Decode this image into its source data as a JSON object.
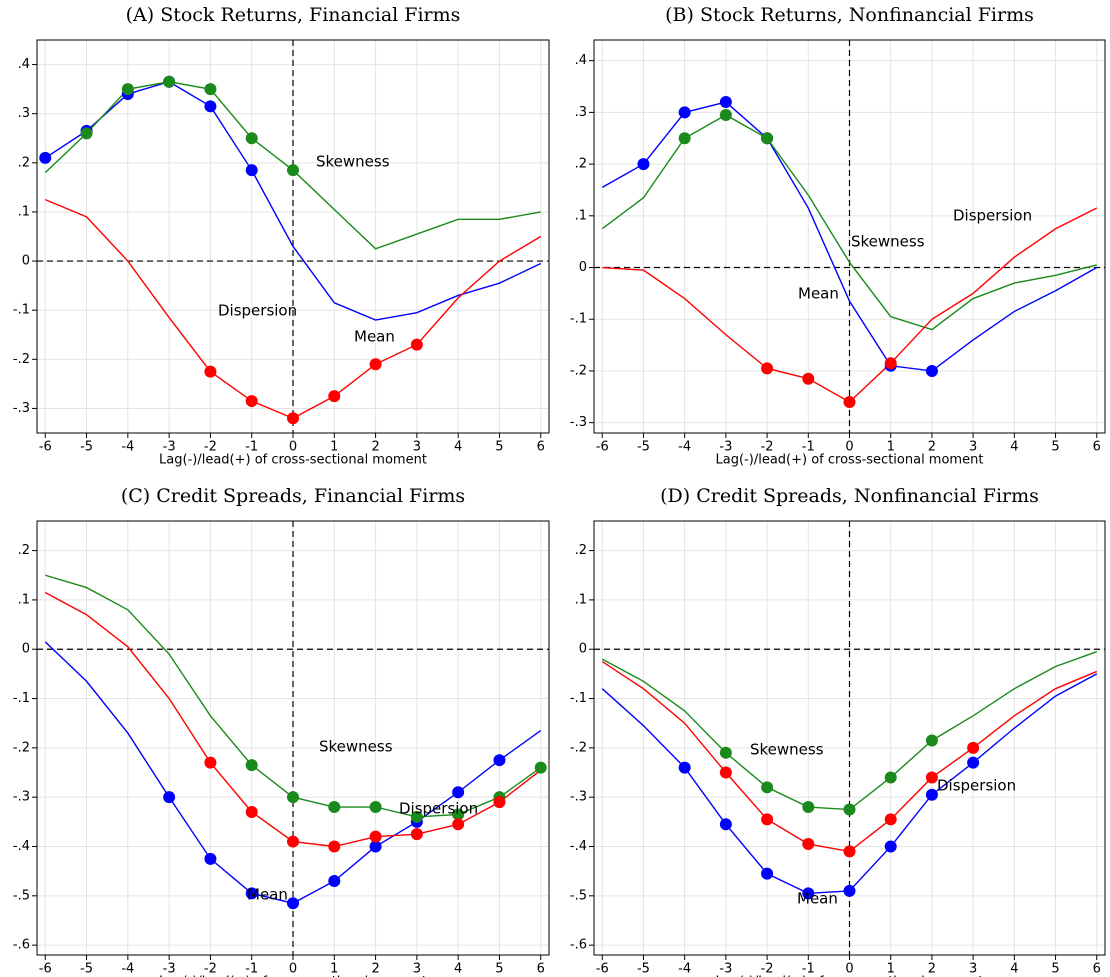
{
  "chart_data": [
    {
      "type": "line",
      "title": "(A) Stock Returns, Financial Firms",
      "x_label": "Lag(-)/lead(+) of cross-sectional moment",
      "x": [
        -6,
        -5,
        -4,
        -3,
        -2,
        -1,
        0,
        1,
        2,
        3,
        4,
        5,
        6
      ],
      "xlim": [
        -6.2,
        6.2
      ],
      "xticks": [
        -6,
        -5,
        -4,
        -3,
        -2,
        -1,
        0,
        1,
        2,
        3,
        4,
        5,
        6
      ],
      "ylim": [
        -0.35,
        0.45
      ],
      "yticks": [
        {
          "value": -0.3,
          "label": "-.3"
        },
        {
          "value": -0.2,
          "label": "-.2"
        },
        {
          "value": -0.1,
          "label": "-.1"
        },
        0,
        {
          "value": 0.1,
          "label": ".1"
        },
        {
          "value": 0.2,
          "label": ".2"
        },
        {
          "value": 0.3,
          "label": ".3"
        },
        {
          "value": 0.4,
          "label": ".4"
        }
      ],
      "grid": true,
      "hline": 0,
      "vline": 0,
      "series": [
        {
          "name": "Mean",
          "color": "#0000ff",
          "values": [
            0.21,
            0.265,
            0.34,
            0.365,
            0.315,
            0.185,
            0.03,
            -0.085,
            -0.12,
            -0.105,
            -0.07,
            -0.045,
            -0.005
          ],
          "markers": [
            true,
            true,
            true,
            true,
            true,
            true,
            false,
            false,
            false,
            false,
            false,
            false,
            false
          ]
        },
        {
          "name": "Skewness",
          "color": "#1a8a1a",
          "values": [
            0.18,
            0.26,
            0.35,
            0.365,
            0.35,
            0.25,
            0.185,
            0.105,
            0.025,
            0.055,
            0.085,
            0.085,
            0.1
          ],
          "markers": [
            false,
            true,
            true,
            true,
            true,
            true,
            true,
            false,
            false,
            false,
            false,
            false,
            false
          ]
        },
        {
          "name": "Dispersion",
          "color": "#ff0000",
          "values": [
            0.125,
            0.09,
            0,
            -0.115,
            -0.225,
            -0.285,
            -0.32,
            -0.275,
            -0.21,
            -0.17,
            -0.075,
            0,
            0.05
          ],
          "markers": [
            false,
            false,
            false,
            false,
            true,
            true,
            true,
            true,
            true,
            true,
            false,
            false,
            false
          ]
        }
      ]
    },
    {
      "type": "line",
      "title": "(B) Stock Returns, Nonfinancial Firms",
      "x_label": "Lag(-)/lead(+) of cross-sectional moment",
      "x": [
        -6,
        -5,
        -4,
        -3,
        -2,
        -1,
        0,
        1,
        2,
        3,
        4,
        5,
        6
      ],
      "xlim": [
        -6.2,
        6.2
      ],
      "xticks": [
        -6,
        -5,
        -4,
        -3,
        -2,
        -1,
        0,
        1,
        2,
        3,
        4,
        5,
        6
      ],
      "ylim": [
        -0.32,
        0.44
      ],
      "yticks": [
        {
          "value": -0.3,
          "label": "-.3"
        },
        {
          "value": -0.2,
          "label": "-.2"
        },
        {
          "value": -0.1,
          "label": "-.1"
        },
        0,
        {
          "value": 0.1,
          "label": ".1"
        },
        {
          "value": 0.2,
          "label": ".2"
        },
        {
          "value": 0.3,
          "label": ".3"
        },
        {
          "value": 0.4,
          "label": ".4"
        }
      ],
      "grid": true,
      "hline": 0,
      "vline": 0,
      "series": [
        {
          "name": "Mean",
          "color": "#0000ff",
          "values": [
            0.155,
            0.2,
            0.3,
            0.32,
            0.25,
            0.115,
            -0.065,
            -0.19,
            -0.2,
            -0.14,
            -0.085,
            -0.045,
            0
          ],
          "markers": [
            false,
            true,
            true,
            true,
            true,
            false,
            false,
            true,
            true,
            false,
            false,
            false,
            false
          ]
        },
        {
          "name": "Skewness",
          "color": "#1a8a1a",
          "values": [
            0.075,
            0.135,
            0.25,
            0.295,
            0.25,
            0.14,
            0.01,
            -0.095,
            -0.12,
            -0.06,
            -0.03,
            -0.015,
            0.005
          ],
          "markers": [
            false,
            false,
            true,
            true,
            true,
            false,
            false,
            false,
            false,
            false,
            false,
            false,
            false
          ]
        },
        {
          "name": "Dispersion",
          "color": "#ff0000",
          "values": [
            0,
            -0.005,
            -0.06,
            -0.13,
            -0.195,
            -0.215,
            -0.26,
            -0.185,
            -0.1,
            -0.05,
            0.02,
            0.075,
            0.115
          ],
          "markers": [
            false,
            false,
            false,
            false,
            true,
            true,
            true,
            true,
            false,
            false,
            false,
            false,
            false
          ]
        }
      ]
    },
    {
      "type": "line",
      "title": "(C) Credit Spreads, Financial Firms",
      "x_label": "Lag(-)/lead(+) of cross-sectional moment",
      "x": [
        -6,
        -5,
        -4,
        -3,
        -2,
        -1,
        0,
        1,
        2,
        3,
        4,
        5,
        6
      ],
      "xlim": [
        -6.2,
        6.2
      ],
      "xticks": [
        -6,
        -5,
        -4,
        -3,
        -2,
        -1,
        0,
        1,
        2,
        3,
        4,
        5,
        6
      ],
      "ylim": [
        -0.62,
        0.26
      ],
      "yticks": [
        {
          "value": -0.6,
          "label": "-.6"
        },
        {
          "value": -0.5,
          "label": "-.5"
        },
        {
          "value": -0.4,
          "label": "-.4"
        },
        {
          "value": -0.3,
          "label": "-.3"
        },
        {
          "value": -0.2,
          "label": "-.2"
        },
        {
          "value": -0.1,
          "label": "-.1"
        },
        0,
        {
          "value": 0.1,
          "label": ".1"
        },
        {
          "value": 0.2,
          "label": ".2"
        }
      ],
      "grid": true,
      "hline": 0,
      "vline": 0,
      "series": [
        {
          "name": "Mean",
          "color": "#0000ff",
          "values": [
            0.015,
            -0.065,
            -0.17,
            -0.3,
            -0.425,
            -0.495,
            -0.515,
            -0.47,
            -0.4,
            -0.35,
            -0.29,
            -0.225,
            -0.165
          ],
          "markers": [
            false,
            false,
            false,
            true,
            true,
            true,
            true,
            true,
            true,
            true,
            true,
            true,
            false
          ]
        },
        {
          "name": "Skewness",
          "color": "#1a8a1a",
          "values": [
            0.15,
            0.125,
            0.08,
            -0.01,
            -0.135,
            -0.235,
            -0.3,
            -0.32,
            -0.32,
            -0.34,
            -0.335,
            -0.3,
            -0.24
          ],
          "markers": [
            false,
            false,
            false,
            false,
            false,
            true,
            true,
            true,
            true,
            true,
            true,
            true,
            true
          ]
        },
        {
          "name": "Dispersion",
          "color": "#ff0000",
          "values": [
            0.115,
            0.07,
            0.005,
            -0.1,
            -0.23,
            -0.33,
            -0.39,
            -0.4,
            -0.38,
            -0.375,
            -0.355,
            -0.31,
            -0.245
          ],
          "markers": [
            false,
            false,
            false,
            false,
            true,
            true,
            true,
            true,
            true,
            true,
            true,
            true,
            false
          ]
        }
      ]
    },
    {
      "type": "line",
      "title": "(D) Credit Spreads, Nonfinancial Firms",
      "x_label": "Lag(-)/lead(+) of cross-sectional moment",
      "x": [
        -6,
        -5,
        -4,
        -3,
        -2,
        -1,
        0,
        1,
        2,
        3,
        4,
        5,
        6
      ],
      "xlim": [
        -6.2,
        6.2
      ],
      "xticks": [
        -6,
        -5,
        -4,
        -3,
        -2,
        -1,
        0,
        1,
        2,
        3,
        4,
        5,
        6
      ],
      "ylim": [
        -0.62,
        0.26
      ],
      "yticks": [
        {
          "value": -0.6,
          "label": "-.6"
        },
        {
          "value": -0.5,
          "label": "-.5"
        },
        {
          "value": -0.4,
          "label": "-.4"
        },
        {
          "value": -0.3,
          "label": "-.3"
        },
        {
          "value": -0.2,
          "label": "-.2"
        },
        {
          "value": -0.1,
          "label": "-.1"
        },
        0,
        {
          "value": 0.1,
          "label": ".1"
        },
        {
          "value": 0.2,
          "label": ".2"
        }
      ],
      "grid": true,
      "hline": 0,
      "vline": 0,
      "series": [
        {
          "name": "Mean",
          "color": "#0000ff",
          "values": [
            -0.08,
            -0.155,
            -0.24,
            -0.355,
            -0.455,
            -0.495,
            -0.49,
            -0.4,
            -0.295,
            -0.23,
            -0.16,
            -0.095,
            -0.05
          ],
          "markers": [
            false,
            false,
            true,
            true,
            true,
            true,
            true,
            true,
            true,
            true,
            false,
            false,
            false
          ]
        },
        {
          "name": "Skewness",
          "color": "#1a8a1a",
          "values": [
            -0.02,
            -0.065,
            -0.125,
            -0.21,
            -0.28,
            -0.32,
            -0.325,
            -0.26,
            -0.185,
            -0.135,
            -0.08,
            -0.035,
            -0.005
          ],
          "markers": [
            false,
            false,
            false,
            true,
            true,
            true,
            true,
            true,
            true,
            false,
            false,
            false,
            false
          ]
        },
        {
          "name": "Dispersion",
          "color": "#ff0000",
          "values": [
            -0.025,
            -0.08,
            -0.15,
            -0.25,
            -0.345,
            -0.395,
            -0.41,
            -0.345,
            -0.26,
            -0.2,
            -0.135,
            -0.08,
            -0.045
          ],
          "markers": [
            false,
            false,
            false,
            true,
            true,
            true,
            true,
            true,
            true,
            true,
            false,
            false,
            false
          ]
        }
      ]
    }
  ]
}
